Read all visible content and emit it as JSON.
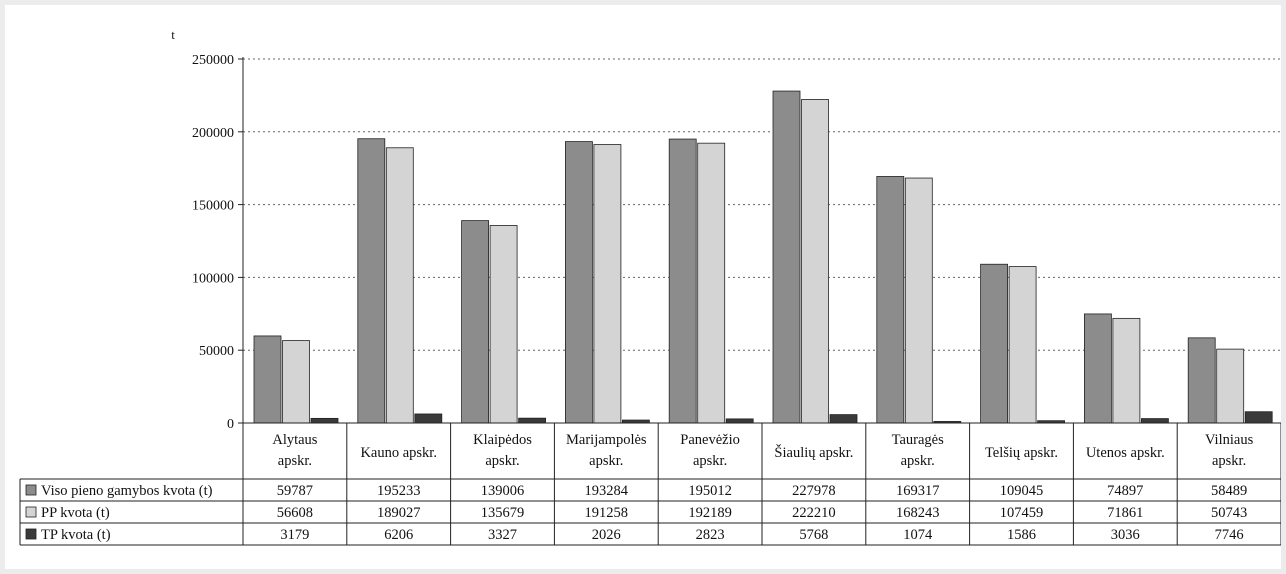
{
  "chart_data": {
    "type": "bar",
    "y_unit": "t",
    "ylim": [
      0,
      250000
    ],
    "yticks": [
      0,
      50000,
      100000,
      150000,
      200000,
      250000
    ],
    "grid": true,
    "categories": [
      [
        "Alytaus",
        "apskr."
      ],
      [
        "Kauno apskr."
      ],
      [
        "Klaipėdos",
        "apskr."
      ],
      [
        "Marijampolės",
        "apskr."
      ],
      [
        "Panevėžio",
        "apskr."
      ],
      [
        "Šiaulių apskr."
      ],
      [
        "Tauragės",
        "apskr."
      ],
      [
        "Telšių apskr."
      ],
      [
        "Utenos apskr."
      ],
      [
        "Vilniaus",
        "apskr."
      ]
    ],
    "series": [
      {
        "name": "Viso pieno gamybos kvota (t)",
        "color": "#8c8c8c",
        "values": [
          59787,
          195233,
          139006,
          193284,
          195012,
          227978,
          169317,
          109045,
          74897,
          58489
        ]
      },
      {
        "name": "PP kvota (t)",
        "color": "#d4d4d4",
        "values": [
          56608,
          189027,
          135679,
          191258,
          192189,
          222210,
          168243,
          107459,
          71861,
          50743
        ]
      },
      {
        "name": "TP kvota (t)",
        "color": "#3a3a3a",
        "values": [
          3179,
          6206,
          3327,
          2026,
          2823,
          5768,
          1074,
          1586,
          3036,
          7746
        ]
      }
    ]
  }
}
